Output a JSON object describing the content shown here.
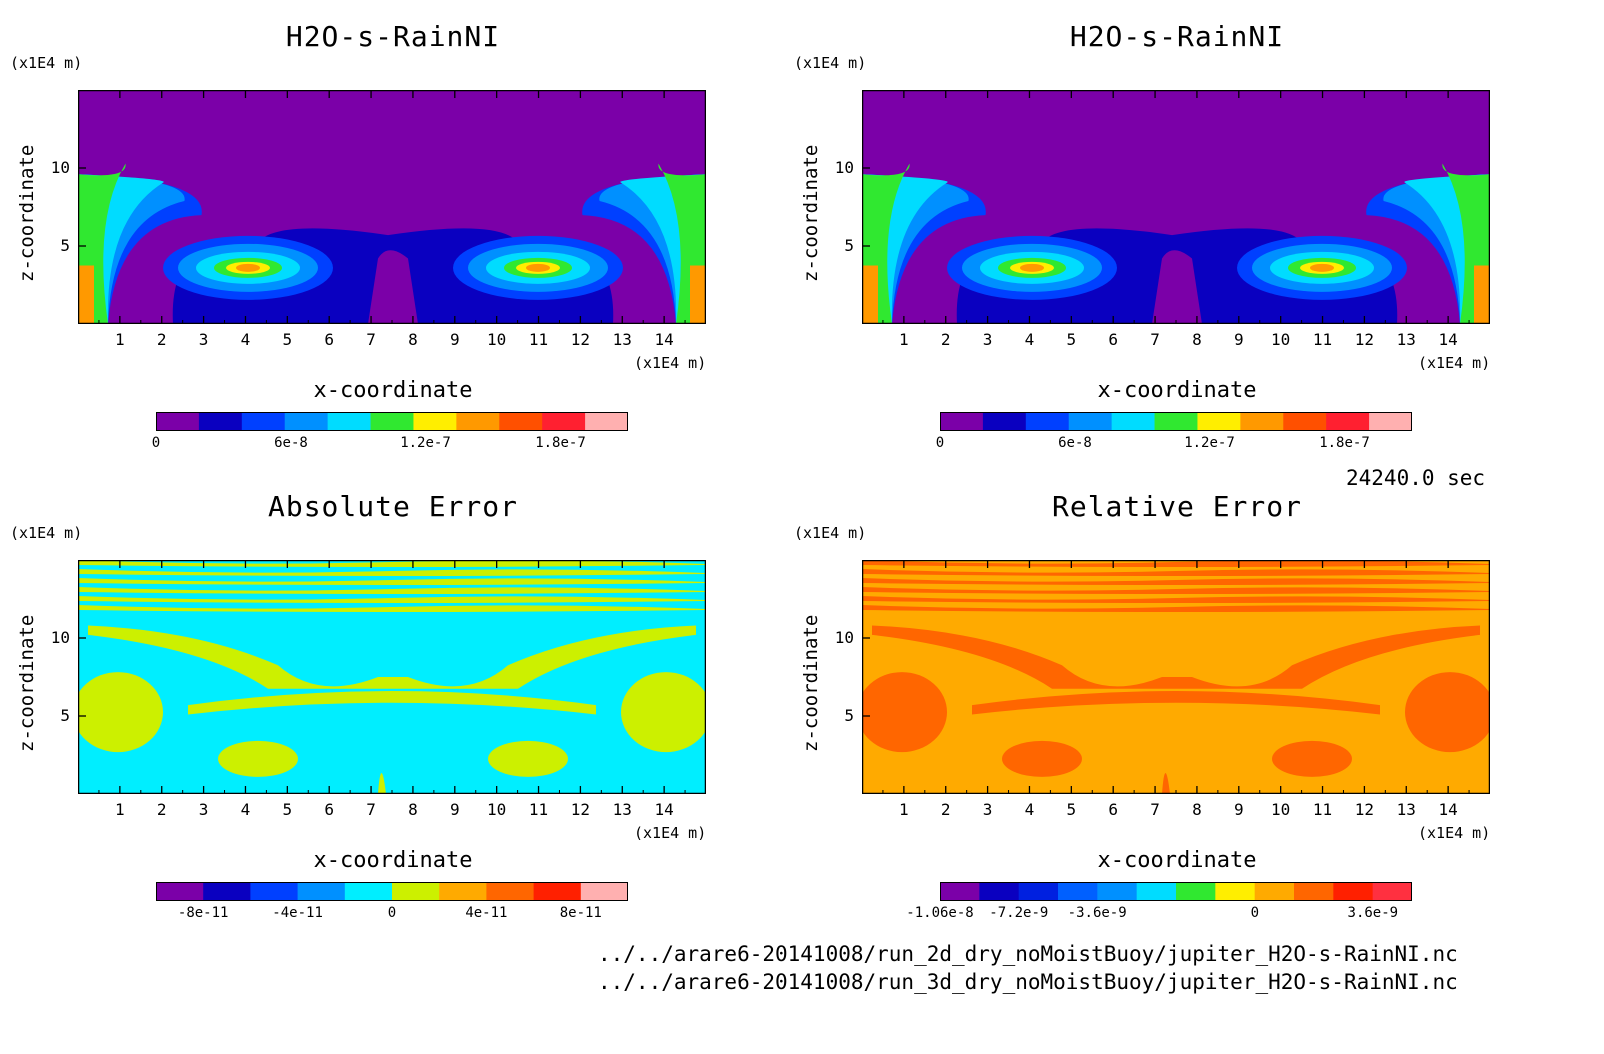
{
  "footer": {
    "time_label": "24240.0 sec",
    "file1": "../../arare6-20141008/run_2d_dry_noMoistBuoy/jupiter_H2O-s-RainNI.nc",
    "file2": "../../arare6-20141008/run_3d_dry_noMoistBuoy/jupiter_H2O-s-RainNI.nc"
  },
  "chart_data": [
    {
      "type": "heatmap",
      "title": "H2O-s-RainNI",
      "xlabel": "x-coordinate",
      "ylabel": "z-coordinate",
      "x_unit": "(x1E4 m)",
      "y_unit": "(x1E4 m)",
      "xticks": [
        "1",
        "2",
        "3",
        "4",
        "5",
        "6",
        "7",
        "8",
        "9",
        "10",
        "11",
        "12",
        "13",
        "14"
      ],
      "yticks": [
        "5",
        "10"
      ],
      "xlim": [
        0,
        15
      ],
      "ylim": [
        0,
        15
      ],
      "colorbar": {
        "colors": [
          "#7b00a8",
          "#0a00c0",
          "#0040ff",
          "#0090ff",
          "#00dcff",
          "#30e830",
          "#ffee00",
          "#ff9900",
          "#ff5000",
          "#ff2030",
          "#ffb0b0"
        ],
        "ticks": [
          "0",
          "6e-8",
          "1.2e-7",
          "1.8e-7"
        ]
      }
    },
    {
      "type": "heatmap",
      "title": "H2O-s-RainNI",
      "xlabel": "x-coordinate",
      "ylabel": "z-coordinate",
      "x_unit": "(x1E4 m)",
      "y_unit": "(x1E4 m)",
      "xticks": [
        "1",
        "2",
        "3",
        "4",
        "5",
        "6",
        "7",
        "8",
        "9",
        "10",
        "11",
        "12",
        "13",
        "14"
      ],
      "yticks": [
        "5",
        "10"
      ],
      "xlim": [
        0,
        15
      ],
      "ylim": [
        0,
        15
      ],
      "colorbar": {
        "colors": [
          "#7b00a8",
          "#0a00c0",
          "#0040ff",
          "#0090ff",
          "#00dcff",
          "#30e830",
          "#ffee00",
          "#ff9900",
          "#ff5000",
          "#ff2030",
          "#ffb0b0"
        ],
        "ticks": [
          "0",
          "6e-8",
          "1.2e-7",
          "1.8e-7"
        ]
      }
    },
    {
      "type": "heatmap",
      "title": "Absolute Error",
      "xlabel": "x-coordinate",
      "ylabel": "z-coordinate",
      "x_unit": "(x1E4 m)",
      "y_unit": "(x1E4 m)",
      "xticks": [
        "1",
        "2",
        "3",
        "4",
        "5",
        "6",
        "7",
        "8",
        "9",
        "10",
        "11",
        "12",
        "13",
        "14"
      ],
      "yticks": [
        "5",
        "10"
      ],
      "xlim": [
        0,
        15
      ],
      "ylim": [
        0,
        15
      ],
      "colorbar": {
        "colors": [
          "#7b00a8",
          "#0a00c0",
          "#0040ff",
          "#0090ff",
          "#00eeff",
          "#ccf000",
          "#ffaa00",
          "#ff6600",
          "#ff2000",
          "#ffb0b0"
        ],
        "ticks": [
          "-8e-11",
          "-4e-11",
          "0",
          "4e-11",
          "8e-11"
        ]
      }
    },
    {
      "type": "heatmap",
      "title": "Relative Error",
      "xlabel": "x-coordinate",
      "ylabel": "z-coordinate",
      "x_unit": "(x1E4 m)",
      "y_unit": "(x1E4 m)",
      "xticks": [
        "1",
        "2",
        "3",
        "4",
        "5",
        "6",
        "7",
        "8",
        "9",
        "10",
        "11",
        "12",
        "13",
        "14"
      ],
      "yticks": [
        "5",
        "10"
      ],
      "xlim": [
        0,
        15
      ],
      "ylim": [
        0,
        15
      ],
      "colorbar": {
        "colors": [
          "#7b00a8",
          "#0a00c0",
          "#0020e0",
          "#0060ff",
          "#0090ff",
          "#00dcff",
          "#30e830",
          "#ffee00",
          "#ffaa00",
          "#ff6600",
          "#ff2000",
          "#ff3040"
        ],
        "ticks": [
          "-1.06e-8",
          "-7.2e-9",
          "-3.6e-9",
          "0",
          "3.6e-9"
        ]
      }
    }
  ]
}
